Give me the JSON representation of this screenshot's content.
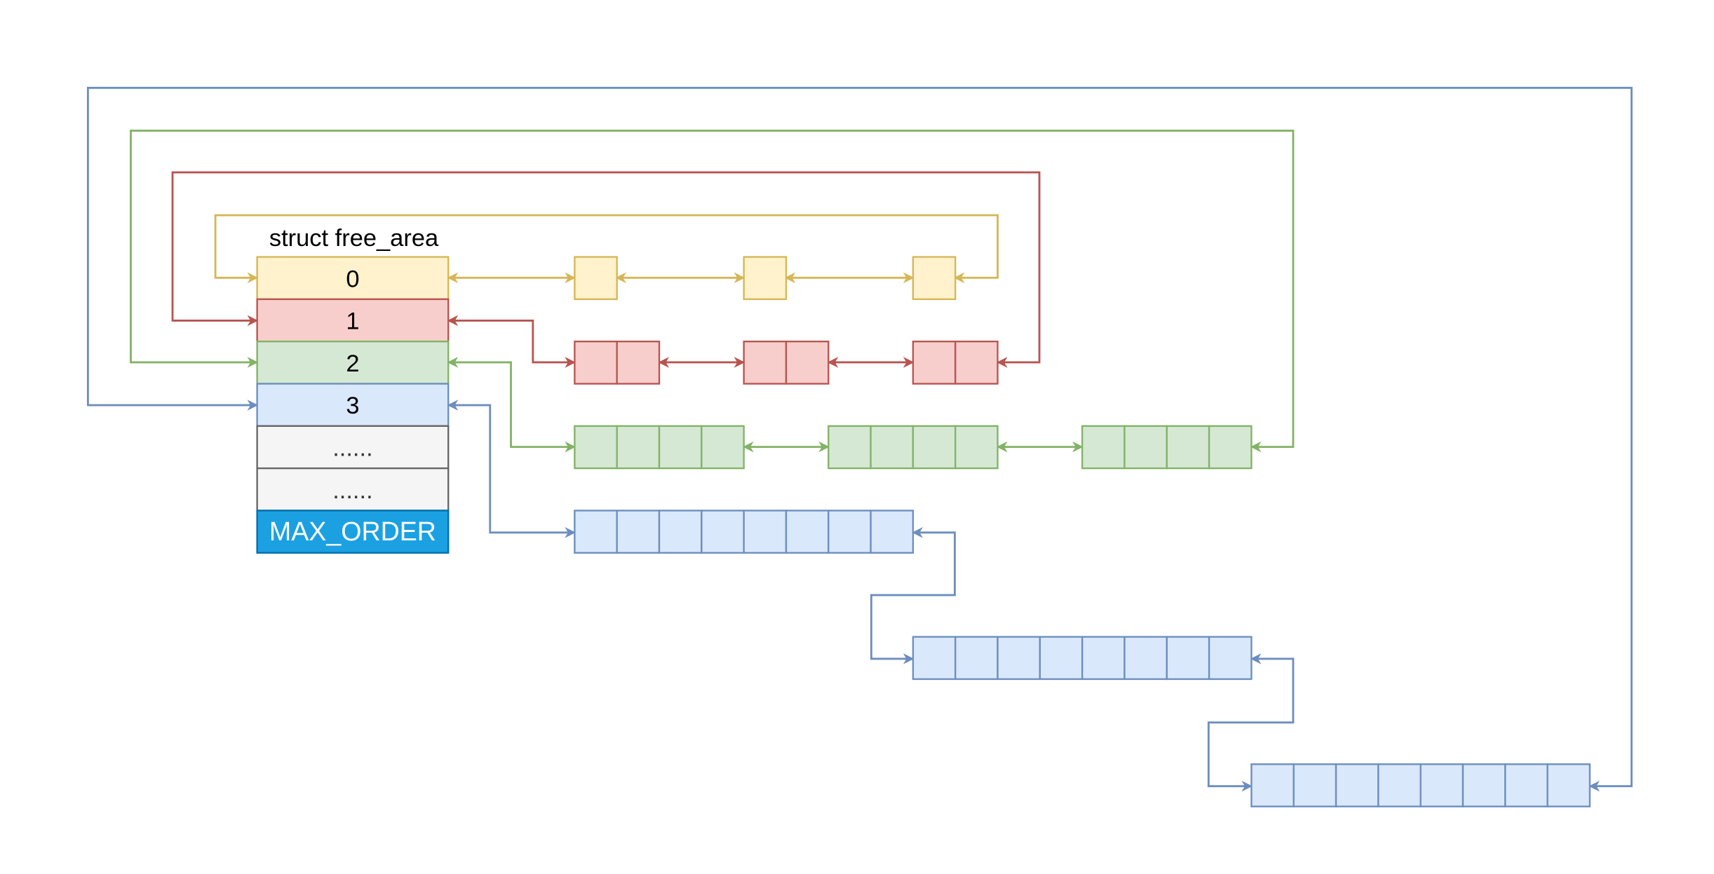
{
  "title": "struct free_area",
  "table_rows": [
    {
      "label": "0",
      "fill": "#fff2cc",
      "stroke": "#d6b656",
      "text_color": "#000000"
    },
    {
      "label": "1",
      "fill": "#f8cecc",
      "stroke": "#b85450",
      "text_color": "#000000"
    },
    {
      "label": "2",
      "fill": "#d5e8d4",
      "stroke": "#82b366",
      "text_color": "#000000"
    },
    {
      "label": "3",
      "fill": "#dae8fc",
      "stroke": "#6c8ebf",
      "text_color": "#000000"
    },
    {
      "label": "......",
      "fill": "#f5f5f5",
      "stroke": "#666666",
      "text_color": "#333333"
    },
    {
      "label": "......",
      "fill": "#f5f5f5",
      "stroke": "#666666",
      "text_color": "#333333"
    },
    {
      "label": "MAX_ORDER",
      "fill": "#1ba1e2",
      "stroke": "#006eaf",
      "text_color": "#ffffff"
    }
  ],
  "lists": [
    {
      "order": 0,
      "color": "order-0",
      "blocks_per_list": 3,
      "pages_per_block": 1
    },
    {
      "order": 1,
      "color": "order-1",
      "blocks_per_list": 3,
      "pages_per_block": 2
    },
    {
      "order": 2,
      "color": "order-2",
      "blocks_per_list": 3,
      "pages_per_block": 4
    },
    {
      "order": 3,
      "color": "order-3",
      "blocks_per_list": 3,
      "pages_per_block": 8
    }
  ]
}
